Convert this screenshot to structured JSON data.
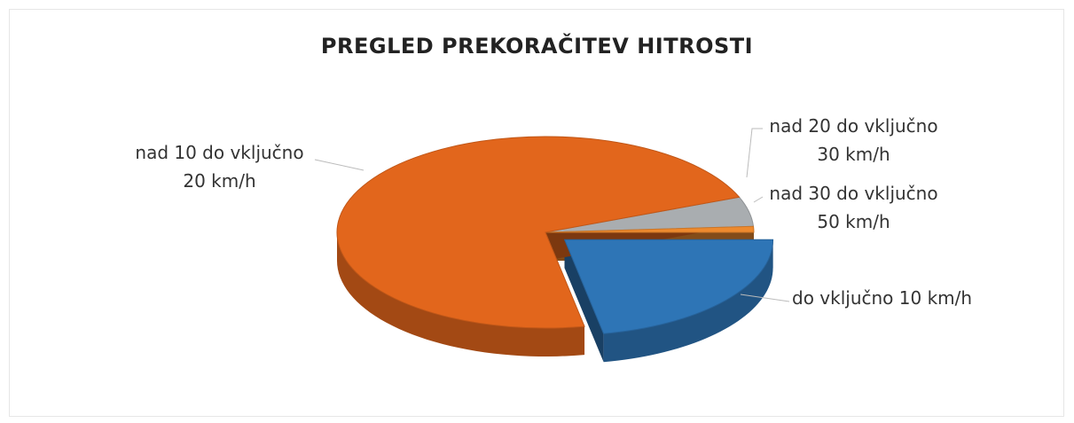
{
  "chart_data": {
    "type": "pie",
    "title": "PREGLED PREKORAČITEV HITROSTI",
    "categories": [
      "do vključno 10 km/h",
      "nad 10 do vključno 20 km/h",
      "nad 20 do vključno 30 km/h",
      "nad 30 do vključno 50 km/h"
    ],
    "values": [
      22,
      72,
      5,
      1
    ],
    "colors": [
      "#2e75b6",
      "#e2661c",
      "#a9adb0",
      "#ee8a2e"
    ]
  }
}
